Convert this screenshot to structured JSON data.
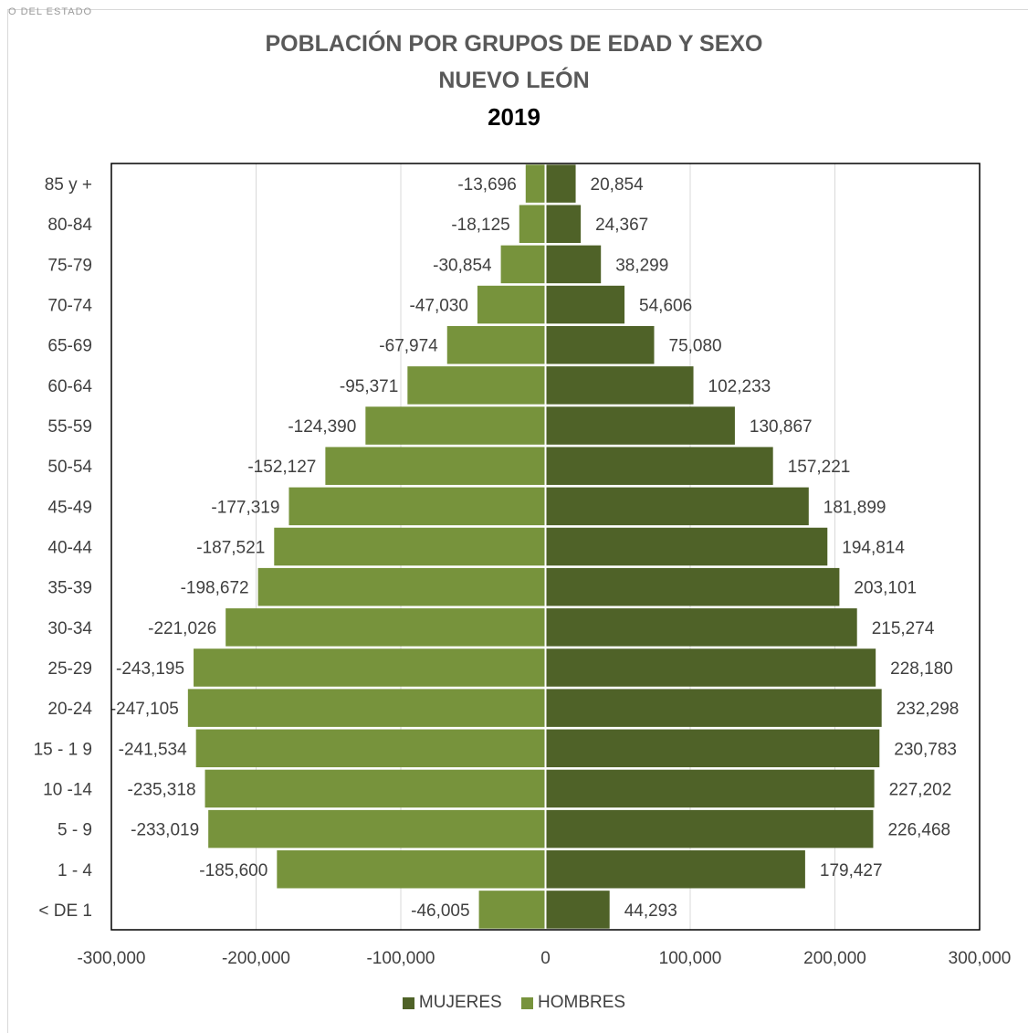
{
  "header_fragment": "O DEL ESTADO",
  "chart_data": {
    "type": "bar",
    "orientation": "horizontal",
    "title": "POBLACIÓN POR GRUPOS DE EDAD Y SEXO",
    "subtitle": "NUEVO LEÓN",
    "year": "2019",
    "categories": [
      "85 y +",
      "80-84",
      "75-79",
      "70-74",
      "65-69",
      "60-64",
      "55-59",
      "50-54",
      "45-49",
      "40-44",
      "35-39",
      "30-34",
      "25-29",
      "20-24",
      "15 - 1 9",
      "10 -14",
      "5 - 9",
      "1 - 4",
      "< DE 1"
    ],
    "series": [
      {
        "name": "HOMBRES",
        "color": "#77933c",
        "values": [
          -13696,
          -18125,
          -30854,
          -47030,
          -67974,
          -95371,
          -124390,
          -152127,
          -177319,
          -187521,
          -198672,
          -221026,
          -243195,
          -247105,
          -241534,
          -235318,
          -233019,
          -185600,
          -46005
        ],
        "labels": [
          "-13,696",
          "-18,125",
          "-30,854",
          "-47,030",
          "-67,974",
          "-95,371",
          "-124,390",
          "-152,127",
          "-177,319",
          "-187,521",
          "-198,672",
          "-221,026",
          "-243,195",
          "-247,105",
          "-241,534",
          "-235,318",
          "-233,019",
          "-185,600",
          "-46,005"
        ]
      },
      {
        "name": "MUJERES",
        "color": "#4f6228",
        "values": [
          20854,
          24367,
          38299,
          54606,
          75080,
          102233,
          130867,
          157221,
          181899,
          194814,
          203101,
          215274,
          228180,
          232298,
          230783,
          227202,
          226468,
          179427,
          44293
        ],
        "labels": [
          "20,854",
          "24,367",
          "38,299",
          "54,606",
          "75,080",
          "102,233",
          "130,867",
          "157,221",
          "181,899",
          "194,814",
          "203,101",
          "215,274",
          "228,180",
          "232,298",
          "230,783",
          "227,202",
          "226,468",
          "179,427",
          "44,293"
        ]
      }
    ],
    "xlim": [
      -300000,
      300000
    ],
    "xticks": [
      -300000,
      -200000,
      -100000,
      0,
      100000,
      200000,
      300000
    ],
    "xtick_labels": [
      "-300,000",
      "-200,000",
      "-100,000",
      "0",
      "100,000",
      "200,000",
      "300,000"
    ],
    "grid": true,
    "legend_placement": "bottom-center",
    "legend": [
      "MUJERES",
      "HOMBRES"
    ]
  }
}
